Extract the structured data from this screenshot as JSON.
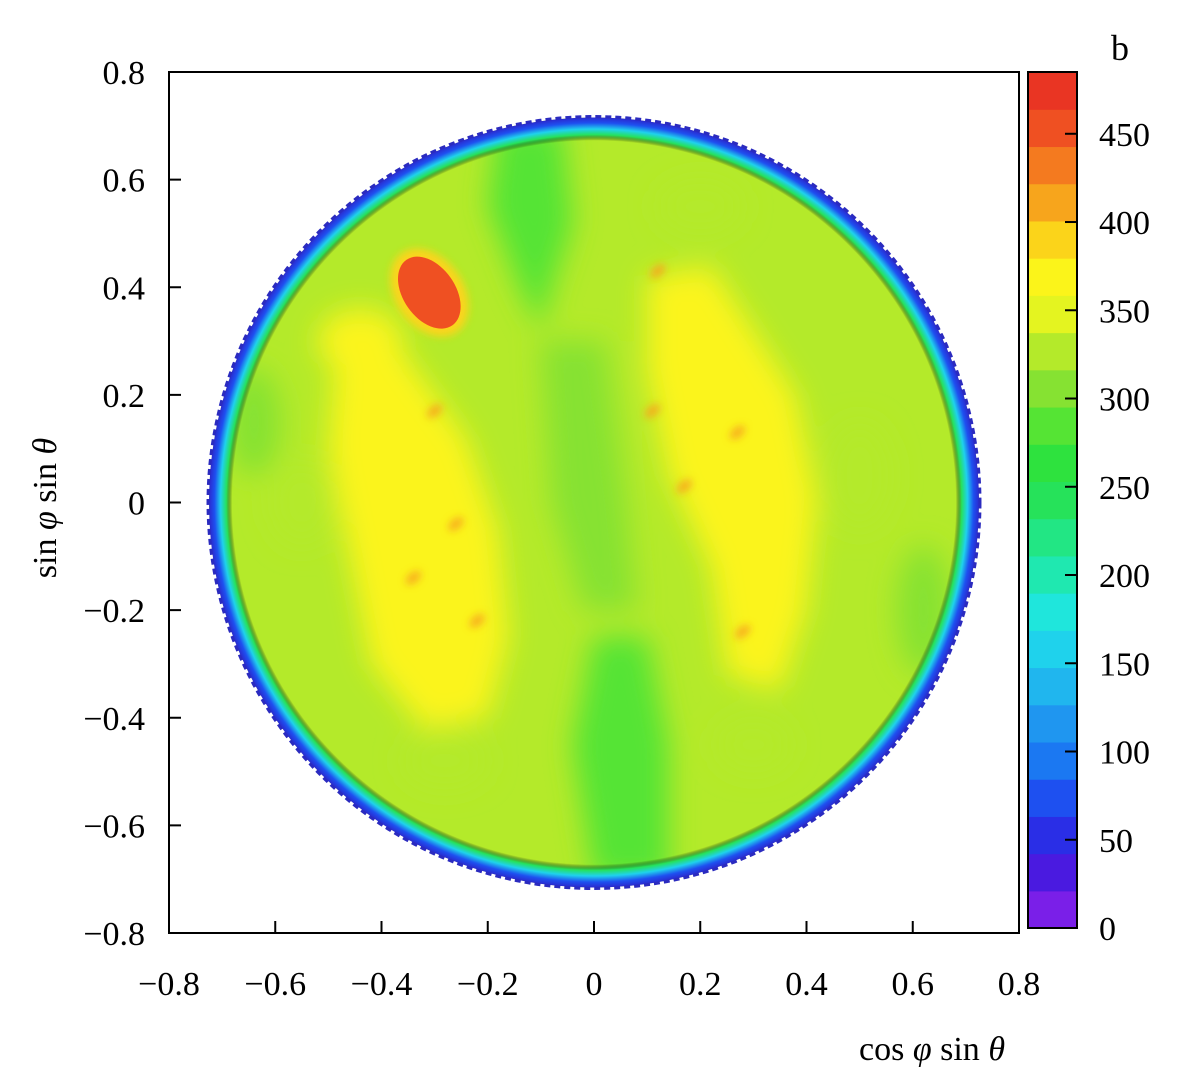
{
  "chart_data": {
    "type": "heatmap",
    "title": "",
    "xlabel": {
      "parts": [
        {
          "text": "cos ",
          "italic": false
        },
        {
          "text": "φ",
          "italic": true
        },
        {
          "text": " sin ",
          "italic": false
        },
        {
          "text": "θ",
          "italic": true
        }
      ]
    },
    "ylabel": {
      "parts": [
        {
          "text": "sin ",
          "italic": false
        },
        {
          "text": "φ",
          "italic": true
        },
        {
          "text": " sin ",
          "italic": false
        },
        {
          "text": "θ",
          "italic": true
        }
      ]
    },
    "xlim": [
      -0.8,
      0.8
    ],
    "ylim": [
      -0.8,
      0.8
    ],
    "x_ticks": [
      -0.8,
      -0.6,
      -0.4,
      -0.2,
      0,
      0.2,
      0.4,
      0.6,
      0.8
    ],
    "y_ticks": [
      -0.8,
      -0.6,
      -0.4,
      -0.2,
      0,
      0.2,
      0.4,
      0.6,
      0.8
    ],
    "x_tick_labels": [
      "−0.8",
      "−0.6",
      "−0.4",
      "−0.2",
      "0",
      "0.2",
      "0.4",
      "0.6",
      "0.8"
    ],
    "y_tick_labels": [
      "−0.8",
      "−0.6",
      "−0.4",
      "−0.2",
      "0",
      "0.2",
      "0.4",
      "0.6",
      "0.8"
    ],
    "grid": false,
    "disk_radius": 0.72,
    "background_level": 320,
    "features": [
      {
        "kind": "hotspot",
        "x": -0.31,
        "y": 0.39,
        "level": 460
      },
      {
        "kind": "yellow-band",
        "x": -0.3,
        "y": 0.0,
        "level": 360
      },
      {
        "kind": "yellow-band",
        "x": 0.3,
        "y": 0.1,
        "level": 360
      },
      {
        "kind": "green-stripe",
        "x": -0.05,
        "y": 0.45,
        "level": 290
      },
      {
        "kind": "green-stripe",
        "x": 0.05,
        "y": -0.5,
        "level": 280
      }
    ],
    "colorbar": {
      "title": "b",
      "range": [
        0,
        485
      ],
      "ticks": [
        0,
        50,
        100,
        150,
        200,
        250,
        300,
        350,
        400,
        450
      ],
      "tick_labels": [
        "0",
        "50",
        "100",
        "150",
        "200",
        "250",
        "300",
        "350",
        "400",
        "450"
      ],
      "colors": [
        "#7a1fe8",
        "#4a1ae0",
        "#2a2ee6",
        "#1e50f0",
        "#1b78f2",
        "#1f96f0",
        "#20b6ee",
        "#1fd2ec",
        "#1fe6dc",
        "#1fe8b0",
        "#22e684",
        "#26e25a",
        "#2ee23e",
        "#55e434",
        "#86e232",
        "#b4ea2a",
        "#e4f420",
        "#fbf41a",
        "#fbd41a",
        "#f7a51c",
        "#f47a1f",
        "#ef5022",
        "#e93523"
      ]
    }
  }
}
